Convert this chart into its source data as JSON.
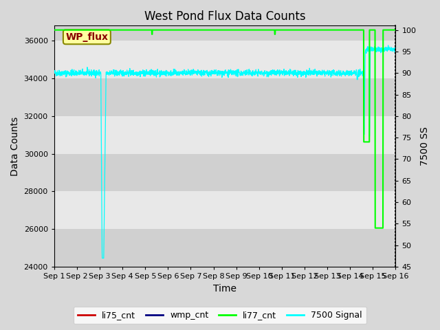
{
  "title": "West Pond Flux Data Counts",
  "xlabel": "Time",
  "ylabel_left": "Data Counts",
  "ylabel_right": "7500 SS",
  "ylim_left": [
    24000,
    36800
  ],
  "ylim_right": [
    45,
    101
  ],
  "yticks_left": [
    24000,
    26000,
    28000,
    30000,
    32000,
    34000,
    36000
  ],
  "yticks_right": [
    45,
    50,
    55,
    60,
    65,
    70,
    75,
    80,
    85,
    90,
    95,
    100
  ],
  "xtick_labels": [
    "Sep 1",
    "Sep 2",
    "Sep 3",
    "Sep 4",
    "Sep 5",
    "Sep 6",
    "Sep 7",
    "Sep 8",
    "Sep 9",
    "Sep 10",
    "Sep 11",
    "Sep 12",
    "Sep 13",
    "Sep 14",
    "Sep 15",
    "Sep 16"
  ],
  "fig_bg_color": "#d8d8d8",
  "plot_bg_color": "#e8e8e8",
  "stripe_color": "#d0d0d0",
  "li77_color": "#00ff00",
  "cyan_color": "#00ffff",
  "red_color": "#cc0000",
  "blue_color": "#000080",
  "legend_labels": [
    "li75_cnt",
    "wmp_cnt",
    "li77_cnt",
    "7500 Signal"
  ],
  "legend_colors": [
    "#cc0000",
    "#000080",
    "#00ff00",
    "#00ffff"
  ],
  "wp_flux_box_color": "#ffffa0",
  "wp_flux_text_color": "#880000",
  "wp_flux_edge_color": "#888800",
  "title_fontsize": 12,
  "axis_fontsize": 10,
  "tick_fontsize": 8,
  "legend_fontsize": 9
}
